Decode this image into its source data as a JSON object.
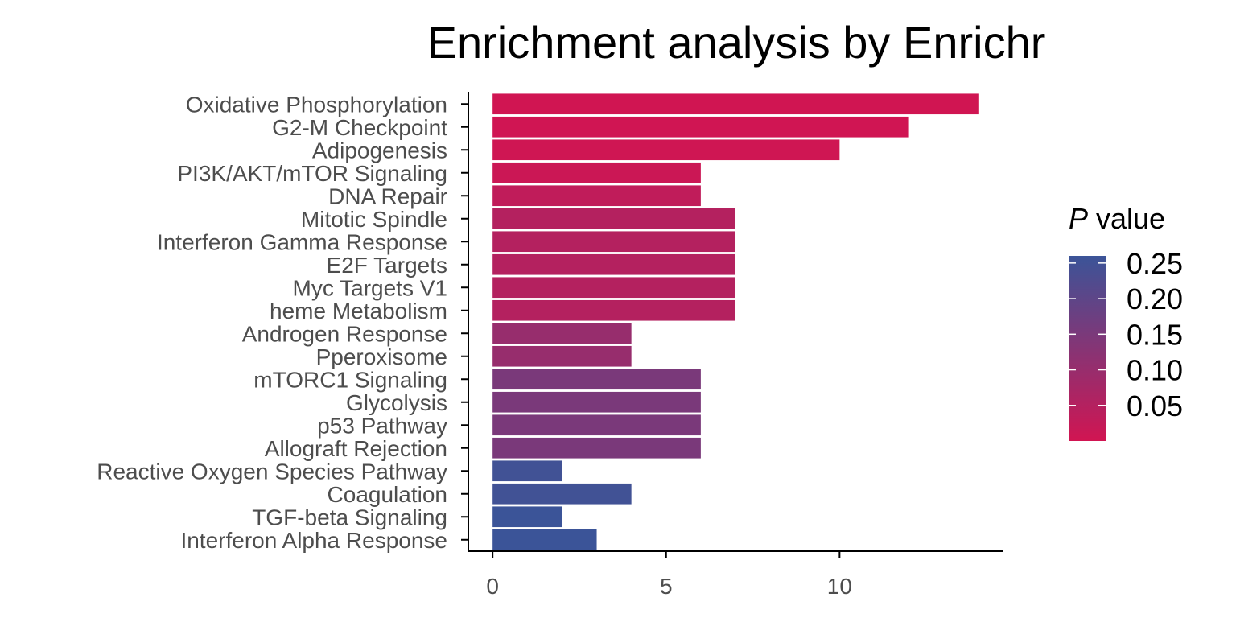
{
  "chart_data": {
    "type": "bar",
    "orientation": "horizontal",
    "title": "Enrichment analysis by Enrichr",
    "xlabel": "",
    "ylabel": "",
    "categories": [
      "Oxidative Phosphorylation",
      "G2-M Checkpoint",
      "Adipogenesis",
      "PI3K/AKT/mTOR  Signaling",
      "DNA Repair",
      "Mitotic Spindle",
      "Interferon Gamma Response",
      "E2F Targets",
      "Myc Targets V1",
      "heme Metabolism",
      "Androgen Response",
      "Pperoxisome",
      "mTORC1 Signaling",
      "Glycolysis",
      "p53 Pathway",
      "Allograft Rejection",
      "Reactive Oxygen Species Pathway",
      "Coagulation",
      "TGF-beta Signaling",
      "Interferon Alpha Response"
    ],
    "values": [
      14,
      12,
      10,
      6,
      6,
      7,
      7,
      7,
      7,
      7,
      4,
      4,
      6,
      6,
      6,
      6,
      2,
      4,
      2,
      3
    ],
    "p_values": [
      0.001,
      0.002,
      0.004,
      0.01,
      0.03,
      0.05,
      0.05,
      0.05,
      0.05,
      0.05,
      0.1,
      0.1,
      0.15,
      0.15,
      0.15,
      0.15,
      0.25,
      0.25,
      0.26,
      0.26
    ],
    "xlim": [
      -0.7,
      14.7
    ],
    "xticks": [
      0,
      5,
      10
    ],
    "grid": false,
    "legend": {
      "title_italic": "P",
      "title_rest": " value",
      "ticks": [
        "0.25",
        "0.20",
        "0.15",
        "0.10",
        "0.05"
      ],
      "tick_values": [
        0.25,
        0.2,
        0.15,
        0.1,
        0.05
      ],
      "range": [
        0,
        0.26
      ],
      "placement": "right",
      "color_low": "#d11552",
      "color_high": "#3b5498"
    }
  }
}
